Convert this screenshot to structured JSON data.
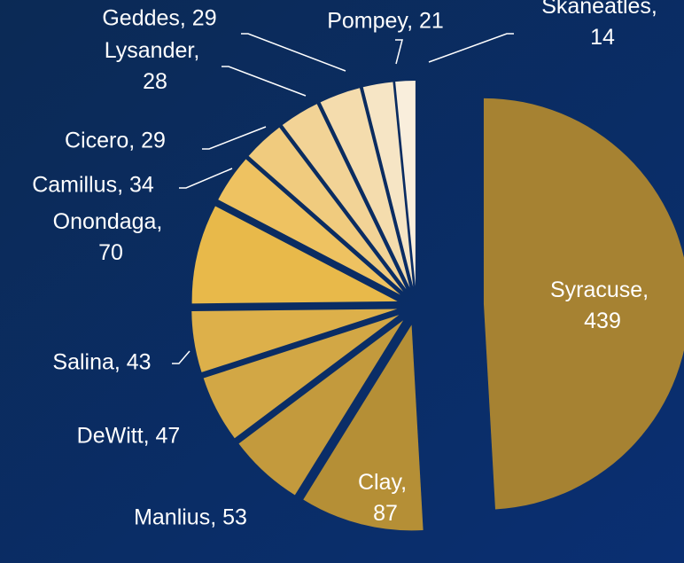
{
  "chart_data": {
    "type": "pie",
    "categories": [
      "Syracuse",
      "Clay",
      "Manlius",
      "DeWitt",
      "Salina",
      "Onondaga",
      "Camillus",
      "Cicero",
      "Lysander",
      "Geddes",
      "Pompey",
      "Skaneatles"
    ],
    "values": [
      439,
      87,
      53,
      47,
      43,
      70,
      34,
      29,
      28,
      29,
      21,
      14
    ],
    "value_labels": [
      "Syracuse, 439",
      "Clay, 87",
      "Manlius, 53",
      "DeWitt, 47",
      "Salina, 43",
      "Onondaga, 70",
      "Camillus, 34",
      "Cicero, 29",
      "Lysander, 28",
      "Geddes, 29",
      "Pompey, 21",
      "Skaneatles, 14"
    ],
    "colors": [
      "#a68232",
      "#b58f36",
      "#c39a3d",
      "#d2a745",
      "#ddb04a",
      "#e8b94a",
      "#eec261",
      "#f0cb7e",
      "#f2d396",
      "#f4dcad",
      "#f6e5c5",
      "#f9eedc"
    ]
  }
}
